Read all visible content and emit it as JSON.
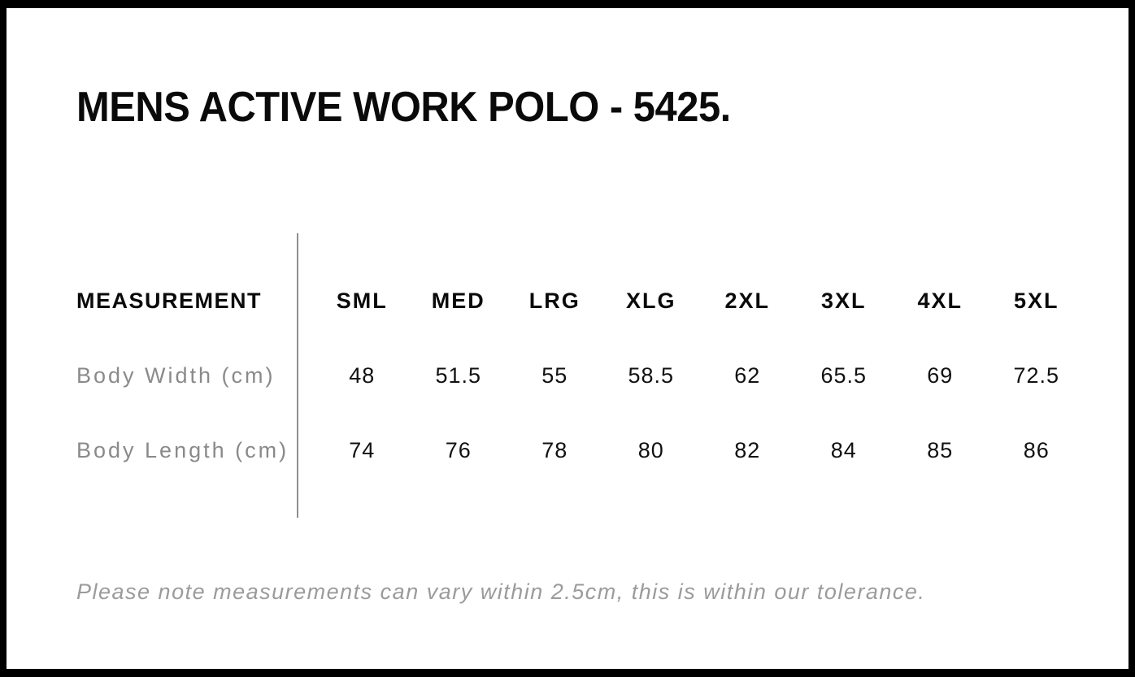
{
  "page": {
    "title": "MENS ACTIVE WORK POLO - 5425.",
    "note": "Please note measurements can vary within 2.5cm, this is within our tolerance."
  },
  "table": {
    "measurement_header": "MEASUREMENT",
    "sizes": [
      "SML",
      "MED",
      "LRG",
      "XLG",
      "2XL",
      "3XL",
      "4XL",
      "5XL"
    ],
    "rows": [
      {
        "label": "Body Width (cm)",
        "values": [
          "48",
          "51.5",
          "55",
          "58.5",
          "62",
          "65.5",
          "69",
          "72.5"
        ]
      },
      {
        "label": "Body Length (cm)",
        "values": [
          "74",
          "76",
          "78",
          "80",
          "82",
          "84",
          "85",
          "86"
        ]
      }
    ]
  },
  "colors": {
    "text": "#0a0a0a",
    "muted_label": "#8a8a8a",
    "note_text": "#9b9b9b",
    "divider": "#8f8f8f",
    "frame": "#000000",
    "background": "#ffffff"
  },
  "chart_data": {
    "type": "table",
    "title": "MENS ACTIVE WORK POLO - 5425.",
    "columns": [
      "MEASUREMENT",
      "SML",
      "MED",
      "LRG",
      "XLG",
      "2XL",
      "3XL",
      "4XL",
      "5XL"
    ],
    "rows": [
      [
        "Body Width (cm)",
        48,
        51.5,
        55,
        58.5,
        62,
        65.5,
        69,
        72.5
      ],
      [
        "Body Length (cm)",
        74,
        76,
        78,
        80,
        82,
        84,
        85,
        86
      ]
    ],
    "footnote": "Please note measurements can vary within 2.5cm, this is within our tolerance."
  }
}
